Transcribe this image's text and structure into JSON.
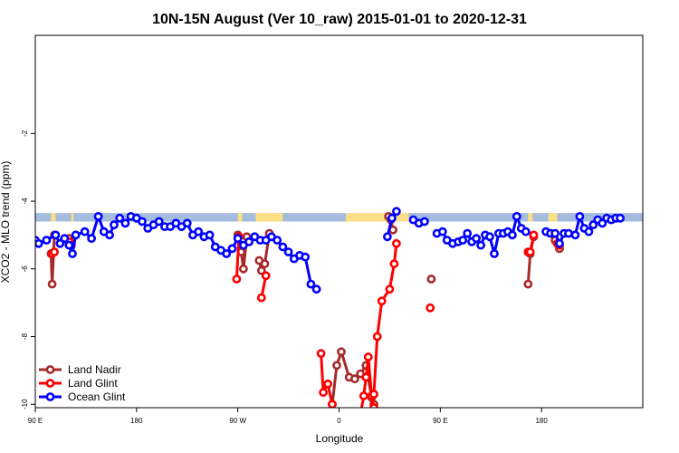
{
  "chart_data": {
    "type": "line",
    "title": "10N-15N August (Ver 10_raw)   2015-01-01 to 2020-12-31",
    "xlabel": "Longitude",
    "ylabel": "XCO2 - MLO trend (ppm)",
    "xlim": [
      -90,
      180
    ],
    "ylim": [
      -10.1,
      0.9
    ],
    "x_ticks": [
      {
        "value": -90,
        "label": "90 E"
      },
      {
        "value": -45,
        "label": "180"
      },
      {
        "value": 0,
        "label": "90 W"
      },
      {
        "value": 45,
        "label": "0"
      },
      {
        "value": 90,
        "label": "90 E"
      },
      {
        "value": 135,
        "label": "180"
      }
    ],
    "y_ticks": [
      {
        "value": -2,
        "label": "-2"
      },
      {
        "value": -4,
        "label": "-4"
      },
      {
        "value": -6,
        "label": "-6"
      },
      {
        "value": -8,
        "label": "-8"
      },
      {
        "value": -10,
        "label": "-10"
      }
    ],
    "land_band": {
      "ymin": -4.6,
      "ymax": -4.35,
      "ocean_color": "#a4bcde",
      "land_color": "#fbdf86",
      "land_ranges": [
        [
          -83,
          -81
        ],
        [
          -74,
          -73
        ],
        [
          0,
          2
        ],
        [
          8,
          20
        ],
        [
          48,
          76
        ],
        [
          129,
          131
        ],
        [
          138,
          142
        ],
        [
          151,
          152
        ]
      ]
    },
    "legend": {
      "position": "bottom-left",
      "entries": [
        {
          "label": "Land Nadir",
          "color": "#a52a2a"
        },
        {
          "label": "Land Glint",
          "color": "#ff0000"
        },
        {
          "label": "Ocean Glint",
          "color": "#0000ff"
        }
      ]
    },
    "series": [
      {
        "name": "Land Nadir",
        "color": "#a52a2a",
        "segments": [
          [
            [
              -83,
              -5.55
            ],
            [
              -82.5,
              -6.45
            ],
            [
              -81.5,
              -5.0
            ]
          ],
          [
            [
              -75,
              -5.1
            ],
            [
              -74,
              -5.3
            ]
          ],
          [
            [
              0,
              -5.0
            ],
            [
              1.5,
              -5.5
            ],
            [
              2.5,
              -6.0
            ],
            [
              4,
              -5.05
            ]
          ],
          [
            [
              9.5,
              -5.75
            ],
            [
              10.5,
              -6.05
            ],
            [
              12,
              -5.85
            ],
            [
              14,
              -4.95
            ]
          ],
          [
            [
              42,
              -10.0
            ],
            [
              44,
              -8.85
            ],
            [
              46,
              -8.45
            ],
            [
              49.5,
              -9.2
            ],
            [
              52,
              -9.25
            ],
            [
              54.5,
              -9.1
            ],
            [
              57,
              -8.85
            ],
            [
              59.5,
              -9.8
            ],
            [
              60.5,
              -10.0
            ]
          ],
          [
            [
              67,
              -4.45
            ],
            [
              68,
              -4.55
            ],
            [
              69,
              -4.85
            ]
          ],
          [
            [
              129,
              -6.45
            ],
            [
              130,
              -5.55
            ],
            [
              131.5,
              -5.05
            ]
          ],
          [
            [
              141,
              -5.15
            ],
            [
              143,
              -5.4
            ]
          ]
        ],
        "points": [
          [
            86,
            -6.3
          ]
        ]
      },
      {
        "name": "Land Glint",
        "color": "#ff0000",
        "segments": [
          [
            [
              -82.5,
              -5.55
            ],
            [
              -81.5,
              -5.5
            ]
          ],
          [
            [
              -75,
              -5.2
            ],
            [
              -74,
              -5.3
            ]
          ],
          [
            [
              -0.5,
              -6.3
            ],
            [
              0.5,
              -5.05
            ]
          ],
          [
            [
              10.5,
              -6.85
            ],
            [
              12.5,
              -6.2
            ]
          ],
          [
            [
              37,
              -8.5
            ],
            [
              38,
              -9.65
            ],
            [
              40,
              -9.4
            ],
            [
              42,
              -10.0
            ],
            [
              42.5,
              -10.3
            ]
          ],
          [
            [
              54.5,
              -10.3
            ],
            [
              56,
              -9.75
            ],
            [
              57,
              -9.2
            ],
            [
              58,
              -8.6
            ],
            [
              59.5,
              -9.75
            ],
            [
              60.5,
              -10.1
            ],
            [
              61,
              -10.3
            ]
          ],
          [
            [
              58.5,
              -10.3
            ],
            [
              60.5,
              -9.7
            ],
            [
              62,
              -8.0
            ],
            [
              64,
              -6.95
            ],
            [
              67.5,
              -6.6
            ],
            [
              69.5,
              -5.85
            ],
            [
              70.5,
              -5.25
            ]
          ],
          [
            [
              129,
              -5.5
            ],
            [
              130,
              -5.5
            ],
            [
              131.5,
              -5.0
            ]
          ],
          [
            [
              142,
              -5.25
            ],
            [
              143,
              -5.3
            ]
          ]
        ],
        "points": [
          [
            85.5,
            -7.15
          ]
        ]
      },
      {
        "name": "Ocean Glint",
        "color": "#0000ff",
        "segments": [
          [
            [
              -90,
              -5.15
            ],
            [
              -88.5,
              -5.25
            ],
            [
              -85,
              -5.15
            ],
            [
              -81,
              -5.0
            ],
            [
              -79,
              -5.25
            ],
            [
              -77,
              -5.1
            ],
            [
              -75,
              -5.3
            ],
            [
              -73.5,
              -5.55
            ],
            [
              -72,
              -5.0
            ],
            [
              -68,
              -4.9
            ],
            [
              -65,
              -5.1
            ],
            [
              -62,
              -4.45
            ],
            [
              -59.5,
              -4.9
            ],
            [
              -57,
              -5.0
            ],
            [
              -55,
              -4.7
            ],
            [
              -52.5,
              -4.5
            ],
            [
              -50,
              -4.65
            ],
            [
              -47.5,
              -4.45
            ],
            [
              -45,
              -4.5
            ],
            [
              -42.5,
              -4.6
            ],
            [
              -40,
              -4.8
            ],
            [
              -37.5,
              -4.7
            ],
            [
              -35,
              -4.6
            ],
            [
              -32.5,
              -4.75
            ],
            [
              -30,
              -4.75
            ],
            [
              -27.5,
              -4.65
            ],
            [
              -25,
              -4.75
            ],
            [
              -22.5,
              -4.65
            ],
            [
              -20,
              -5.0
            ],
            [
              -17.5,
              -4.9
            ],
            [
              -15,
              -5.05
            ],
            [
              -12.5,
              -5.0
            ],
            [
              -10,
              -5.35
            ],
            [
              -7.5,
              -5.45
            ],
            [
              -5,
              -5.55
            ],
            [
              -2.5,
              -5.4
            ],
            [
              0,
              -5.1
            ],
            [
              2.5,
              -5.3
            ],
            [
              5,
              -5.2
            ],
            [
              7.5,
              -5.05
            ],
            [
              10,
              -5.15
            ],
            [
              12.5,
              -5.15
            ],
            [
              15,
              -5.05
            ],
            [
              17.5,
              -5.15
            ],
            [
              20,
              -5.35
            ],
            [
              22.5,
              -5.5
            ],
            [
              25,
              -5.7
            ],
            [
              27.5,
              -5.6
            ],
            [
              30,
              -5.65
            ],
            [
              32.5,
              -6.45
            ],
            [
              35,
              -6.6
            ]
          ],
          [
            [
              66.5,
              -5.05
            ],
            [
              68.5,
              -4.5
            ],
            [
              70.5,
              -4.3
            ]
          ],
          [
            [
              78,
              -4.55
            ],
            [
              80.5,
              -4.65
            ],
            [
              83,
              -4.6
            ]
          ],
          [
            [
              88.5,
              -4.95
            ],
            [
              91,
              -4.9
            ],
            [
              93,
              -5.15
            ],
            [
              95.5,
              -5.25
            ],
            [
              98,
              -5.2
            ],
            [
              100,
              -5.15
            ],
            [
              102,
              -4.95
            ],
            [
              104,
              -5.2
            ],
            [
              106,
              -5.1
            ],
            [
              108,
              -5.3
            ],
            [
              110,
              -5.0
            ],
            [
              112,
              -5.05
            ],
            [
              114,
              -5.55
            ],
            [
              116,
              -4.95
            ],
            [
              118,
              -4.95
            ],
            [
              120,
              -4.9
            ],
            [
              122,
              -5.0
            ],
            [
              124,
              -4.45
            ],
            [
              126,
              -4.8
            ],
            [
              128,
              -4.9
            ]
          ],
          [
            [
              137,
              -4.9
            ],
            [
              139,
              -4.95
            ],
            [
              141,
              -4.95
            ],
            [
              143,
              -5.25
            ],
            [
              145,
              -4.95
            ],
            [
              147,
              -4.95
            ],
            [
              150,
              -5.0
            ],
            [
              152,
              -4.45
            ],
            [
              154,
              -4.8
            ],
            [
              156,
              -4.9
            ],
            [
              158,
              -4.7
            ],
            [
              160,
              -4.55
            ],
            [
              162,
              -4.65
            ],
            [
              164,
              -4.5
            ],
            [
              166,
              -4.55
            ],
            [
              168,
              -4.5
            ],
            [
              170,
              -4.5
            ]
          ]
        ],
        "points": []
      }
    ]
  }
}
